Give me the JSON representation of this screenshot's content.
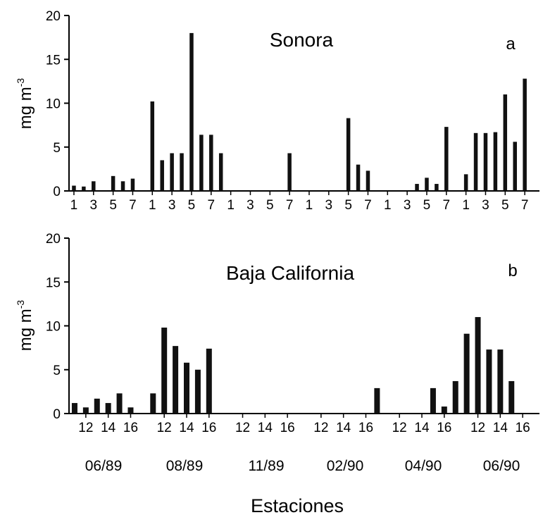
{
  "chart_data": [
    {
      "type": "bar",
      "title": "Sonora",
      "panel_label": "a",
      "ylabel": "mg m",
      "ylabel_superscript": "-3",
      "ylim": [
        0,
        20
      ],
      "yticks": [
        0,
        5,
        10,
        15,
        20
      ],
      "grid": false,
      "groups": [
        {
          "stations": [
            1,
            2,
            3,
            4,
            5,
            6,
            7,
            8
          ],
          "values": [
            0.6,
            0.5,
            1.1,
            0,
            1.7,
            1.1,
            1.4,
            0
          ]
        },
        {
          "stations": [
            1,
            2,
            3,
            4,
            5,
            6,
            7,
            8
          ],
          "values": [
            10.2,
            3.5,
            4.3,
            4.3,
            18,
            6.4,
            6.4,
            4.3
          ]
        },
        {
          "stations": [
            1,
            2,
            3,
            4,
            5,
            6,
            7,
            8
          ],
          "values": [
            0,
            0,
            0,
            0,
            0,
            0,
            4.3,
            0
          ]
        },
        {
          "stations": [
            1,
            2,
            3,
            4,
            5,
            6,
            7,
            8
          ],
          "values": [
            0,
            0,
            0,
            0,
            8.3,
            3,
            2.3,
            0
          ]
        },
        {
          "stations": [
            1,
            2,
            3,
            4,
            5,
            6,
            7,
            8
          ],
          "values": [
            0,
            0,
            0,
            0.8,
            1.5,
            0.8,
            7.3,
            0
          ]
        },
        {
          "stations": [
            1,
            2,
            3,
            4,
            5,
            6,
            7,
            8
          ],
          "values": [
            1.9,
            6.6,
            6.6,
            6.7,
            11,
            5.6,
            12.8,
            0
          ]
        }
      ],
      "tick_labels": [
        "1",
        "3",
        "5",
        "7",
        "1",
        "3",
        "5",
        "7",
        "1",
        "3",
        "5",
        "7",
        "1",
        "3",
        "5",
        "7",
        "1",
        "3",
        "5",
        "7",
        "1",
        "3",
        "5",
        "7"
      ]
    },
    {
      "type": "bar",
      "title": "Baja California",
      "panel_label": "b",
      "ylabel": "mg m",
      "ylabel_superscript": "-3",
      "ylim": [
        0,
        20
      ],
      "yticks": [
        0,
        5,
        10,
        15,
        20
      ],
      "grid": false,
      "groups": [
        {
          "stations": [
            11,
            12,
            13,
            14,
            15,
            16,
            17
          ],
          "values": [
            1.2,
            0.7,
            1.7,
            1.2,
            2.3,
            0.7,
            0
          ]
        },
        {
          "stations": [
            11,
            12,
            13,
            14,
            15,
            16,
            17
          ],
          "values": [
            2.3,
            9.8,
            7.7,
            5.8,
            5,
            7.4,
            0
          ]
        },
        {
          "stations": [
            11,
            12,
            13,
            14,
            15,
            16,
            17
          ],
          "values": [
            0,
            0,
            0,
            0,
            0,
            0,
            0
          ]
        },
        {
          "stations": [
            11,
            12,
            13,
            14,
            15,
            16,
            17
          ],
          "values": [
            0,
            0,
            0,
            0,
            0,
            0,
            2.9
          ]
        },
        {
          "stations": [
            11,
            12,
            13,
            14,
            15,
            16,
            17
          ],
          "values": [
            0,
            0,
            0,
            0,
            2.9,
            0.8,
            3.7
          ]
        },
        {
          "stations": [
            11,
            12,
            13,
            14,
            15,
            16,
            17
          ],
          "values": [
            9.1,
            11,
            7.3,
            7.3,
            3.7,
            0,
            0
          ]
        }
      ],
      "tick_labels": [
        "12",
        "14",
        "16",
        "12",
        "14",
        "16",
        "12",
        "14",
        "16",
        "12",
        "14",
        "16",
        "12",
        "14",
        "16",
        "12",
        "14",
        "16"
      ]
    }
  ],
  "group_labels": [
    "06/89",
    "08/89",
    "11/89",
    "02/90",
    "04/90",
    "06/90"
  ],
  "xlabel": "Estaciones",
  "colors": {
    "bar": "#111111",
    "axis": "#000000",
    "background": "#ffffff"
  }
}
